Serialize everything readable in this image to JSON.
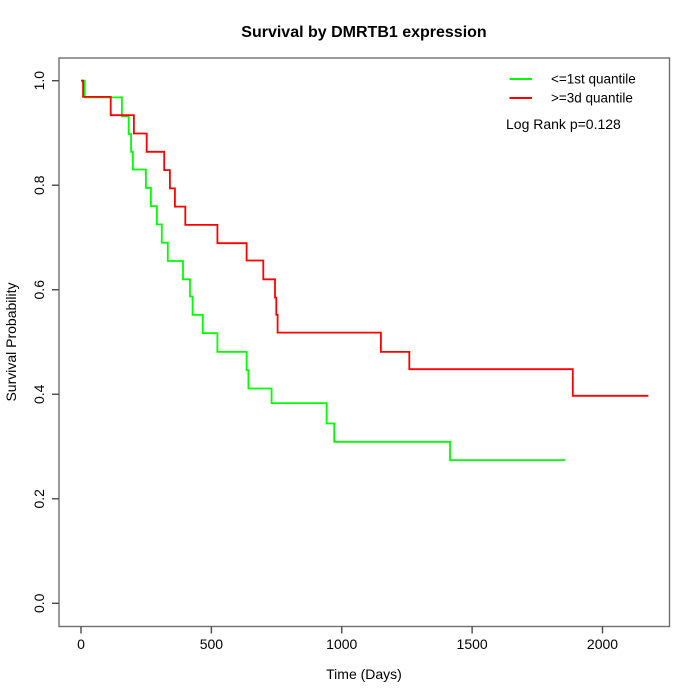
{
  "chart_data": {
    "type": "line",
    "subtype": "kaplan-meier-step",
    "title": "Survival by DMRTB1 expression",
    "xlabel": "Time (Days)",
    "ylabel": "Survival Probability",
    "xlim": [
      0,
      2260
    ],
    "ylim": [
      0.0,
      1.0
    ],
    "grid": false,
    "x_ticks": [
      "0",
      "500",
      "1000",
      "1500",
      "2000"
    ],
    "x_tick_values": [
      0,
      500,
      1000,
      1500,
      2000
    ],
    "y_ticks": [
      "0.0",
      "0.2",
      "0.4",
      "0.6",
      "0.8",
      "1.0"
    ],
    "y_tick_values": [
      0.0,
      0.2,
      0.4,
      0.6,
      0.8,
      1.0
    ],
    "legend_position": "top-right",
    "annotation": "Log Rank p=0.128",
    "series": [
      {
        "name": "<=1st quantile",
        "color": "#00ff00",
        "end_x": 1856,
        "steps": [
          [
            0,
            1.0
          ],
          [
            14,
            0.968
          ],
          [
            157,
            0.932
          ],
          [
            183,
            0.898
          ],
          [
            192,
            0.864
          ],
          [
            199,
            0.83
          ],
          [
            249,
            0.795
          ],
          [
            268,
            0.76
          ],
          [
            291,
            0.725
          ],
          [
            310,
            0.69
          ],
          [
            333,
            0.655
          ],
          [
            391,
            0.62
          ],
          [
            418,
            0.587
          ],
          [
            428,
            0.552
          ],
          [
            467,
            0.517
          ],
          [
            523,
            0.481
          ],
          [
            635,
            0.446
          ],
          [
            642,
            0.411
          ],
          [
            731,
            0.383
          ],
          [
            942,
            0.344
          ],
          [
            971,
            0.309
          ],
          [
            1415,
            0.274
          ]
        ]
      },
      {
        "name": ">=3d quantile",
        "color": "#ff0000",
        "end_x": 2176,
        "steps": [
          [
            0,
            1.0
          ],
          [
            8,
            0.969
          ],
          [
            114,
            0.934
          ],
          [
            203,
            0.899
          ],
          [
            252,
            0.864
          ],
          [
            319,
            0.829
          ],
          [
            341,
            0.794
          ],
          [
            360,
            0.759
          ],
          [
            400,
            0.724
          ],
          [
            523,
            0.689
          ],
          [
            635,
            0.656
          ],
          [
            699,
            0.62
          ],
          [
            744,
            0.585
          ],
          [
            749,
            0.552
          ],
          [
            754,
            0.518
          ],
          [
            1150,
            0.481
          ],
          [
            1259,
            0.448
          ],
          [
            1886,
            0.397
          ]
        ]
      }
    ]
  }
}
